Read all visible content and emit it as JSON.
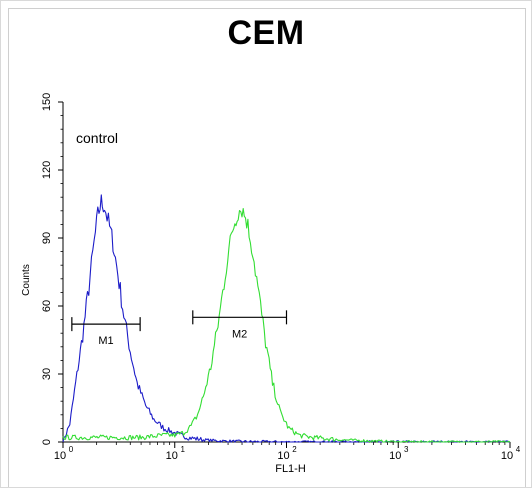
{
  "chart_data": {
    "type": "line",
    "title": "CEM",
    "annotation": "control",
    "xlabel": "FL1-H",
    "ylabel": "Counts",
    "x_scale": "log",
    "xlim": [
      1,
      10000
    ],
    "ylim": [
      0,
      150
    ],
    "x_ticks": [
      {
        "value": 1,
        "base": "10",
        "exp": "0"
      },
      {
        "value": 10,
        "base": "10",
        "exp": "1"
      },
      {
        "value": 100,
        "base": "10",
        "exp": "2"
      },
      {
        "value": 1000,
        "base": "10",
        "exp": "3"
      },
      {
        "value": 10000,
        "base": "10",
        "exp": "4"
      }
    ],
    "y_ticks": [
      "0",
      "30",
      "60",
      "90",
      "120",
      "150"
    ],
    "grid": false,
    "series": [
      {
        "color": "#1c1cc8",
        "points": [
          [
            1,
            0
          ],
          [
            1.15,
            8
          ],
          [
            1.3,
            26
          ],
          [
            1.5,
            47
          ],
          [
            1.7,
            68
          ],
          [
            1.9,
            88
          ],
          [
            2.05,
            100
          ],
          [
            2.2,
            106
          ],
          [
            2.35,
            104
          ],
          [
            2.55,
            97
          ],
          [
            2.8,
            88
          ],
          [
            3.1,
            74
          ],
          [
            3.5,
            56
          ],
          [
            4.0,
            40
          ],
          [
            4.6,
            26
          ],
          [
            5.5,
            16
          ],
          [
            6.5,
            10
          ],
          [
            8,
            6
          ],
          [
            10,
            4
          ],
          [
            13,
            2
          ],
          [
            18,
            1
          ],
          [
            25,
            0.5
          ],
          [
            40,
            0.2
          ],
          [
            100,
            0
          ],
          [
            10000,
            0
          ]
        ]
      },
      {
        "color": "#33dd33",
        "points": [
          [
            1,
            2
          ],
          [
            3,
            2
          ],
          [
            5,
            2
          ],
          [
            8,
            3
          ],
          [
            10,
            3
          ],
          [
            12,
            4
          ],
          [
            14,
            7
          ],
          [
            16,
            12
          ],
          [
            18,
            20
          ],
          [
            21,
            33
          ],
          [
            25,
            55
          ],
          [
            29,
            78
          ],
          [
            33,
            94
          ],
          [
            37,
            102
          ],
          [
            40,
            103
          ],
          [
            44,
            98
          ],
          [
            50,
            84
          ],
          [
            57,
            64
          ],
          [
            65,
            44
          ],
          [
            75,
            26
          ],
          [
            88,
            13
          ],
          [
            105,
            6
          ],
          [
            130,
            3
          ],
          [
            170,
            2
          ],
          [
            300,
            1
          ],
          [
            1000,
            0
          ],
          [
            10000,
            0
          ]
        ]
      }
    ],
    "markers": [
      {
        "label": "M1",
        "x_start": 1.2,
        "x_end": 4.9,
        "y": 52
      },
      {
        "label": "M2",
        "x_start": 14.5,
        "x_end": 100,
        "y": 55
      }
    ]
  }
}
